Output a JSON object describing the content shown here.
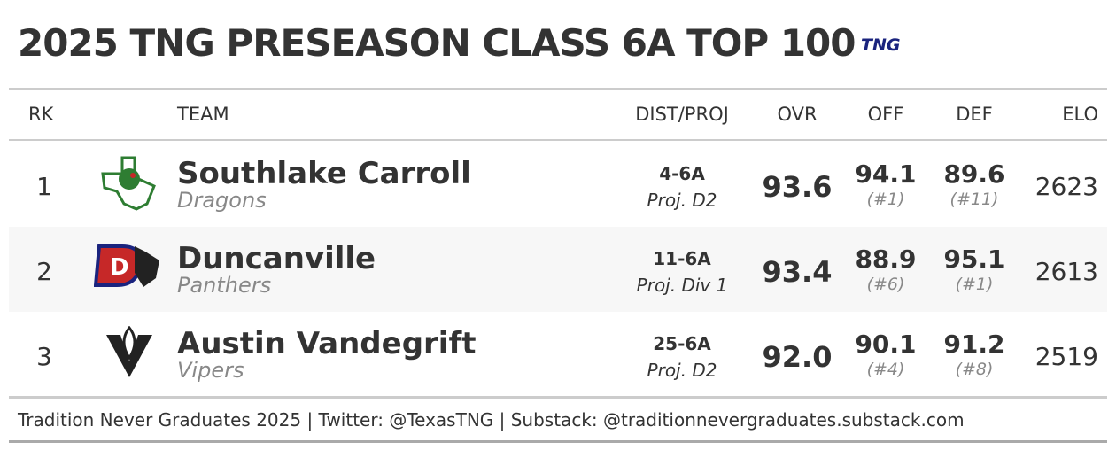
{
  "header": {
    "title": "2025 TNG PRESEASON CLASS 6A TOP 100",
    "logo": "TNG"
  },
  "table": {
    "columns": [
      "RK",
      "TEAM",
      "DIST/PROJ",
      "OVR",
      "OFF",
      "DEF",
      "ELO"
    ],
    "rows": [
      {
        "rank": "1",
        "team": "Southlake Carroll",
        "mascot": "Dragons",
        "district": "4-6A",
        "projection": "Proj. D2",
        "ovr": "93.6",
        "off": "94.1",
        "off_rank": "(#1)",
        "def": "89.6",
        "def_rank": "(#11)",
        "elo": "2623"
      },
      {
        "rank": "2",
        "team": "Duncanville",
        "mascot": "Panthers",
        "district": "11-6A",
        "projection": "Proj. Div 1",
        "ovr": "93.4",
        "off": "88.9",
        "off_rank": "(#6)",
        "def": "95.1",
        "def_rank": "(#1)",
        "elo": "2613"
      },
      {
        "rank": "3",
        "team": "Austin Vandegrift",
        "mascot": "Vipers",
        "district": "25-6A",
        "projection": "Proj. D2",
        "ovr": "92.0",
        "off": "90.1",
        "off_rank": "(#4)",
        "def": "91.2",
        "def_rank": "(#8)",
        "elo": "2519"
      }
    ]
  },
  "footer": {
    "text": "Tradition Never Graduates 2025 | Twitter: @TexasTNG | Substack: @traditionnevergraduates.substack.com"
  }
}
